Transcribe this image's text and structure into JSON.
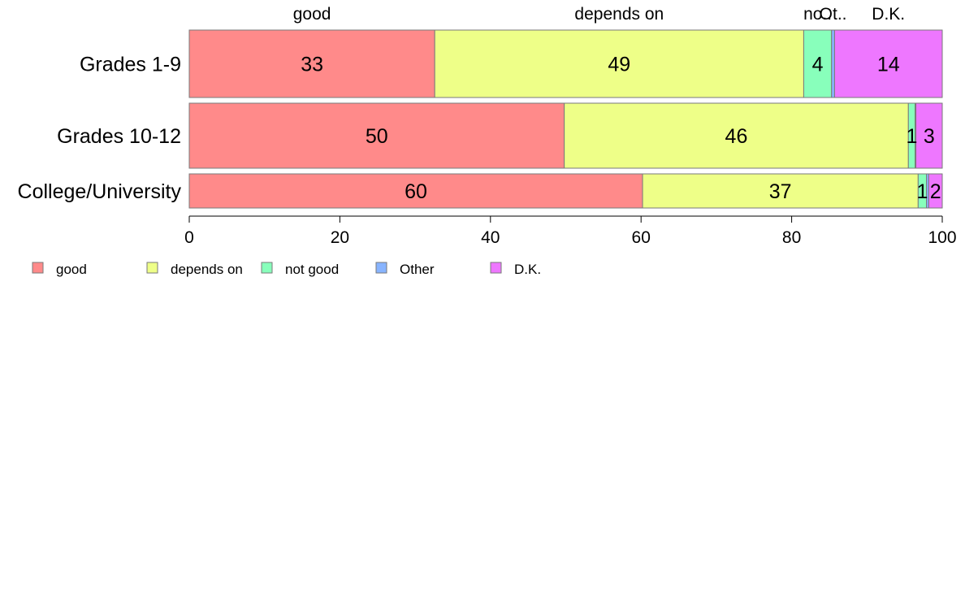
{
  "chart_data": {
    "type": "bar",
    "orientation": "horizontal",
    "stacked": true,
    "categories": [
      "Grades 1-9",
      "Grades 10-12",
      "College/University"
    ],
    "series": [
      {
        "name": "good",
        "color": "#FF8A8A",
        "values": [
          32.6,
          49.8,
          60.2
        ],
        "labels": [
          "33",
          "50",
          "60"
        ]
      },
      {
        "name": "depends on",
        "color": "#EEFF88",
        "values": [
          49.0,
          45.7,
          36.6
        ],
        "labels": [
          "49",
          "46",
          "37"
        ]
      },
      {
        "name": "not good",
        "color": "#88FFBB",
        "values": [
          3.7,
          0.9,
          1.1
        ],
        "labels": [
          "4",
          "1",
          "1"
        ]
      },
      {
        "name": "Other",
        "color": "#88B4FF",
        "values": [
          0.4,
          0.1,
          0.3
        ],
        "labels": [
          "",
          "",
          ""
        ]
      },
      {
        "name": "D.K.",
        "color": "#EE77FF",
        "values": [
          14.3,
          3.5,
          1.8
        ],
        "labels": [
          "14",
          "3",
          "2"
        ]
      }
    ],
    "top_labels": [
      "good",
      "depends on",
      "no..",
      "Ot..",
      "D.K."
    ],
    "xlim": [
      0,
      100
    ],
    "xticks": [
      0,
      20,
      40,
      60,
      80,
      100
    ],
    "xtick_labels": [
      "0",
      "20",
      "40",
      "60",
      "80",
      "100"
    ],
    "grid": false,
    "legend_position": "bottom-left"
  }
}
